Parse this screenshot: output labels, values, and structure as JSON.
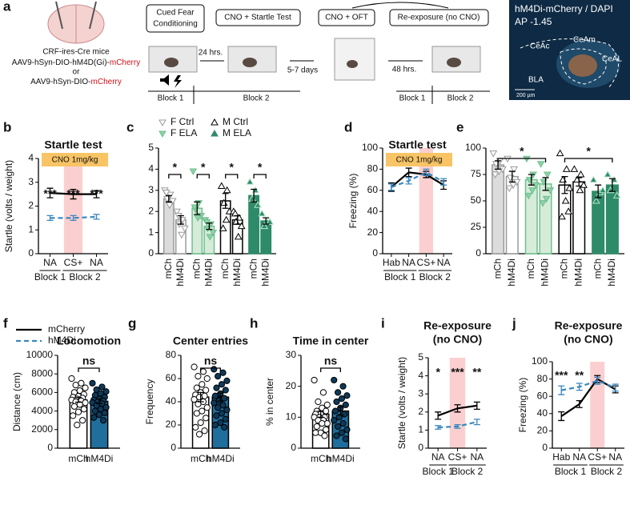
{
  "panel_a": {
    "label": "a",
    "mice": "CRF-ires-Cre mice",
    "virus_1": "AAV9-hSyn-DIO-hM4D(Gi)-",
    "virus_1_reporter": "mCherry",
    "or": "or",
    "virus_2": "AAV9-hSyn-DIO-",
    "virus_2_reporter": "mCherry",
    "steps": [
      [
        "Cued Fear",
        "Conditioning"
      ],
      "CNO + Startle Test",
      "CNO + OFT",
      "Re-exposure (no CNO)"
    ],
    "intervals": [
      "24 hrs.",
      "5-7 days",
      "48 hrs."
    ],
    "blocks": [
      "Block 1",
      "Block 2"
    ],
    "histology": {
      "title": "hM4Di-mCherry / DAPI",
      "ap": "AP -1.45",
      "regions": [
        "CeAc",
        "CeAm",
        "CeAL",
        "BLA"
      ],
      "scale": "200 µm"
    }
  },
  "chart_data": [
    {
      "type": "line",
      "label": "b",
      "title": "Startle test",
      "annotation": "CNO 1mg/kg",
      "ylabel": "Startle (volts / weight)",
      "categories": [
        "NA",
        "CS+",
        "NA"
      ],
      "groups": [
        "Block 1",
        "Block 2"
      ],
      "ylim": [
        0,
        4
      ],
      "yticks": [
        0,
        1,
        2,
        3,
        4
      ],
      "significance": [
        "***",
        "***",
        "***"
      ],
      "series": [
        {
          "name": "mCherry",
          "color": "#000000",
          "dash": false,
          "values": [
            2.55,
            2.5,
            2.5
          ],
          "errors": [
            0.2,
            0.2,
            0.15
          ]
        },
        {
          "name": "hM4Di",
          "color": "#3a87c0",
          "dash": true,
          "values": [
            1.5,
            1.5,
            1.55
          ],
          "errors": [
            0.1,
            0.1,
            0.1
          ]
        }
      ]
    },
    {
      "type": "bar",
      "label": "c",
      "ylim": [
        0,
        5
      ],
      "yticks": [
        0,
        1,
        2,
        3,
        4,
        5
      ],
      "categories": [
        "mCh",
        "hM4Di"
      ],
      "significance": [
        "*",
        "*",
        "*",
        "*"
      ],
      "series": [
        {
          "name": "F Ctrl",
          "color": "#9a9a9a",
          "marker": "down",
          "bar_fills": [
            "#dcdcdc",
            "#ffffff"
          ],
          "point_fills": [
            "#ffffff",
            "#ffffff"
          ],
          "values": [
            2.6,
            1.6
          ],
          "errors": [
            0.15,
            0.2
          ],
          "points": [
            [
              3.0,
              2.8,
              2.6,
              2.5,
              2.3,
              2.9
            ],
            [
              2.0,
              1.6,
              1.4,
              1.2,
              0.9,
              1.8
            ]
          ]
        },
        {
          "name": "F ELA",
          "color": "#6fbf8e",
          "marker": "down",
          "bar_fills": [
            "#d6ecd9",
            "#d6ecd9"
          ],
          "point_fills": [
            "#8fd1a8",
            "#8fd1a8"
          ],
          "values": [
            2.15,
            1.3
          ],
          "errors": [
            0.3,
            0.15
          ],
          "points": [
            [
              3.9,
              2.4,
              2.1,
              1.8,
              1.7,
              2.2
            ],
            [
              1.6,
              1.4,
              1.2,
              1.0,
              0.8,
              1.5
            ]
          ]
        },
        {
          "name": "M Ctrl",
          "color": "#000000",
          "marker": "up",
          "bar_fills": [
            "#ffffff",
            "#ffffff"
          ],
          "point_fills": [
            "#ffffff",
            "#ffffff"
          ],
          "values": [
            2.5,
            1.6
          ],
          "errors": [
            0.35,
            0.2
          ],
          "points": [
            [
              3.2,
              3.0,
              2.4,
              2.0,
              1.6,
              1.2
            ],
            [
              2.0,
              1.7,
              1.5,
              1.3,
              0.8,
              1.9
            ]
          ]
        },
        {
          "name": "M ELA",
          "color": "#2e8b6a",
          "marker": "up",
          "bar_fills": [
            "#2e8b6a",
            "#2e8b6a"
          ],
          "point_fills": [
            "#2e8b6a",
            "#2e8b6a"
          ],
          "values": [
            2.75,
            1.55
          ],
          "errors": [
            0.3,
            0.15
          ],
          "points": [
            [
              3.4,
              3.0,
              2.6,
              2.3
            ],
            [
              1.9,
              1.5,
              1.3,
              1.5
            ]
          ]
        }
      ]
    },
    {
      "type": "line",
      "label": "d",
      "title": "Startle test",
      "annotation": "CNO 1mg/kg",
      "ylabel": "Freezing (%)",
      "categories": [
        "Hab",
        "NA",
        "CS+",
        "NA"
      ],
      "groups": [
        "Block 1",
        "Block 2"
      ],
      "ylim": [
        0,
        100
      ],
      "yticks": [
        0,
        20,
        40,
        60,
        80,
        100
      ],
      "series": [
        {
          "color": "#000000",
          "dash": false,
          "values": [
            63,
            77,
            75,
            65
          ],
          "errors": [
            4,
            4,
            3,
            4
          ]
        },
        {
          "color": "#3a87c0",
          "dash": true,
          "values": [
            63,
            69,
            77,
            68
          ],
          "errors": [
            3,
            3,
            3,
            3
          ]
        }
      ]
    },
    {
      "type": "bar",
      "label": "e",
      "ylim": [
        0,
        100
      ],
      "yticks": [
        0,
        25,
        50,
        75,
        100
      ],
      "categories": [
        "mCh",
        "hM4Di"
      ],
      "significance": [
        "*",
        "*"
      ],
      "series": [
        {
          "color": "#9a9a9a",
          "marker": "down",
          "bar_fills": [
            "#dcdcdc",
            "#ffffff"
          ],
          "point_fills": [
            "#ffffff",
            "#ffffff"
          ],
          "values": [
            84,
            73
          ],
          "errors": [
            4,
            5
          ],
          "points": [
            [
              95,
              88,
              85,
              80,
              78,
              75
            ],
            [
              90,
              80,
              72,
              68,
              65,
              62
            ]
          ]
        },
        {
          "color": "#6fbf8e",
          "marker": "down",
          "bar_fills": [
            "#d6ecd9",
            "#d6ecd9"
          ],
          "point_fills": [
            "#8fd1a8",
            "#8fd1a8"
          ],
          "values": [
            70,
            66
          ],
          "errors": [
            5,
            6
          ],
          "points": [
            [
              90,
              75,
              70,
              65,
              60,
              55
            ],
            [
              85,
              75,
              68,
              60,
              52,
              48
            ]
          ]
        },
        {
          "color": "#000000",
          "marker": "up",
          "bar_fills": [
            "#ffffff",
            "#ffffff"
          ],
          "point_fills": [
            "#ffffff",
            "#ffffff"
          ],
          "values": [
            65,
            68
          ],
          "errors": [
            8,
            4
          ],
          "points": [
            [
              95,
              80,
              70,
              62,
              50,
              35,
              40
            ],
            [
              80,
              75,
              70,
              65,
              60
            ]
          ]
        },
        {
          "color": "#2e8b6a",
          "marker": "up",
          "bar_fills": [
            "#2e8b6a",
            "#2e8b6a"
          ],
          "point_fills": [
            "#2e8b6a",
            "#2e8b6a"
          ],
          "values": [
            59,
            65
          ],
          "errors": [
            6,
            6
          ],
          "points": [
            [
              70,
              58,
              50,
              60
            ],
            [
              75,
              70,
              60,
              55
            ]
          ]
        }
      ]
    },
    {
      "type": "bar",
      "label": "f",
      "title": "Locomotion",
      "ylabel": "Distance (cm)",
      "ylim": [
        0,
        10000
      ],
      "yticks": [
        0,
        2000,
        4000,
        6000,
        8000,
        10000
      ],
      "categories": [
        "mCh",
        "hM4Di"
      ],
      "significance": [
        "ns"
      ],
      "series": [
        {
          "color": "#000000",
          "marker": "circle",
          "bar_fills": [
            "#ffffff",
            "#1f6e9c"
          ],
          "point_fills": [
            "#ffffff",
            "#0d3a5a"
          ],
          "values": [
            5200,
            5050
          ],
          "errors": [
            250,
            250
          ],
          "points": [
            [
              7500,
              7000,
              6800,
              6500,
              6200,
              6000,
              5800,
              5600,
              5500,
              5400,
              5300,
              5200,
              5100,
              5000,
              4900,
              4700,
              4500,
              4200,
              3900,
              3500,
              3000,
              2500
            ],
            [
              7000,
              6600,
              6300,
              6100,
              5900,
              5700,
              5500,
              5300,
              5200,
              5100,
              5000,
              4900,
              4800,
              4600,
              4400,
              4200,
              4000,
              3800,
              3600,
              3300,
              3000
            ]
          ]
        }
      ]
    },
    {
      "type": "bar",
      "label": "g",
      "title": "Center entries",
      "ylabel": "Frequency",
      "ylim": [
        0,
        80
      ],
      "yticks": [
        0,
        20,
        40,
        60,
        80
      ],
      "categories": [
        "mCh",
        "hM4Di"
      ],
      "significance": [
        "ns"
      ],
      "series": [
        {
          "color": "#000000",
          "marker": "circle",
          "bar_fills": [
            "#ffffff",
            "#1f6e9c"
          ],
          "point_fills": [
            "#ffffff",
            "#0d3a5a"
          ],
          "values": [
            44,
            44
          ],
          "errors": [
            4,
            3.5
          ],
          "points": [
            [
              70,
              66,
              62,
              60,
              55,
              52,
              50,
              48,
              46,
              45,
              44,
              42,
              40,
              38,
              35,
              32,
              30,
              26,
              22,
              18,
              15,
              12
            ],
            [
              68,
              65,
              62,
              58,
              55,
              52,
              50,
              47,
              45,
              43,
              41,
              39,
              37,
              35,
              33,
              30,
              28,
              25,
              22,
              20,
              18
            ]
          ]
        }
      ]
    },
    {
      "type": "bar",
      "label": "h",
      "title": "Time in center",
      "ylabel": "% in center",
      "ylim": [
        0,
        30
      ],
      "yticks": [
        0,
        10,
        20,
        30
      ],
      "categories": [
        "mCh",
        "hM4Di"
      ],
      "significance": [
        "ns"
      ],
      "series": [
        {
          "color": "#000000",
          "marker": "circle",
          "bar_fills": [
            "#ffffff",
            "#1f6e9c"
          ],
          "point_fills": [
            "#ffffff",
            "#0d3a5a"
          ],
          "values": [
            11,
            12
          ],
          "errors": [
            1,
            1.3
          ],
          "points": [
            [
              22,
              18,
              15,
              14,
              13,
              12,
              12,
              11,
              11,
              10,
              10,
              10,
              9,
              9,
              8,
              8,
              7,
              6,
              5,
              5,
              4
            ],
            [
              22,
              20,
              18,
              17,
              16,
              15,
              14,
              13,
              12,
              11,
              10,
              9,
              8,
              7,
              6,
              5,
              4,
              3
            ]
          ]
        }
      ]
    },
    {
      "type": "line",
      "label": "i",
      "title": "Re-exposure",
      "subtitle": "(no CNO)",
      "ylabel": "Startle (volts / weight)",
      "categories": [
        "NA",
        "CS+",
        "NA"
      ],
      "groups": [
        "Block 1",
        "Block 2"
      ],
      "ylim": [
        0,
        5
      ],
      "yticks": [
        0,
        1,
        2,
        3,
        4,
        5
      ],
      "significance": [
        "*",
        "***",
        "**"
      ],
      "series": [
        {
          "color": "#000000",
          "dash": false,
          "values": [
            1.8,
            2.2,
            2.35
          ],
          "errors": [
            0.2,
            0.2,
            0.2
          ]
        },
        {
          "color": "#3a87c0",
          "dash": true,
          "values": [
            1.15,
            1.2,
            1.45
          ],
          "errors": [
            0.1,
            0.1,
            0.15
          ]
        }
      ]
    },
    {
      "type": "line",
      "label": "j",
      "title": "Re-exposure",
      "subtitle": "(no CNO)",
      "ylabel": "Freezing (%)",
      "categories": [
        "Hab",
        "NA",
        "CS+",
        "NA"
      ],
      "groups": [
        "Block 1",
        "Block 2"
      ],
      "ylim": [
        0,
        100
      ],
      "yticks": [
        0,
        20,
        40,
        60,
        80,
        100
      ],
      "significance": [
        "***",
        "**"
      ],
      "series": [
        {
          "color": "#000000",
          "dash": false,
          "values": [
            37,
            51,
            80,
            68
          ],
          "errors": [
            5,
            4,
            4,
            4
          ]
        },
        {
          "color": "#3a87c0",
          "dash": true,
          "values": [
            67,
            71,
            78,
            70
          ],
          "errors": [
            5,
            4,
            4,
            4
          ]
        }
      ]
    }
  ]
}
